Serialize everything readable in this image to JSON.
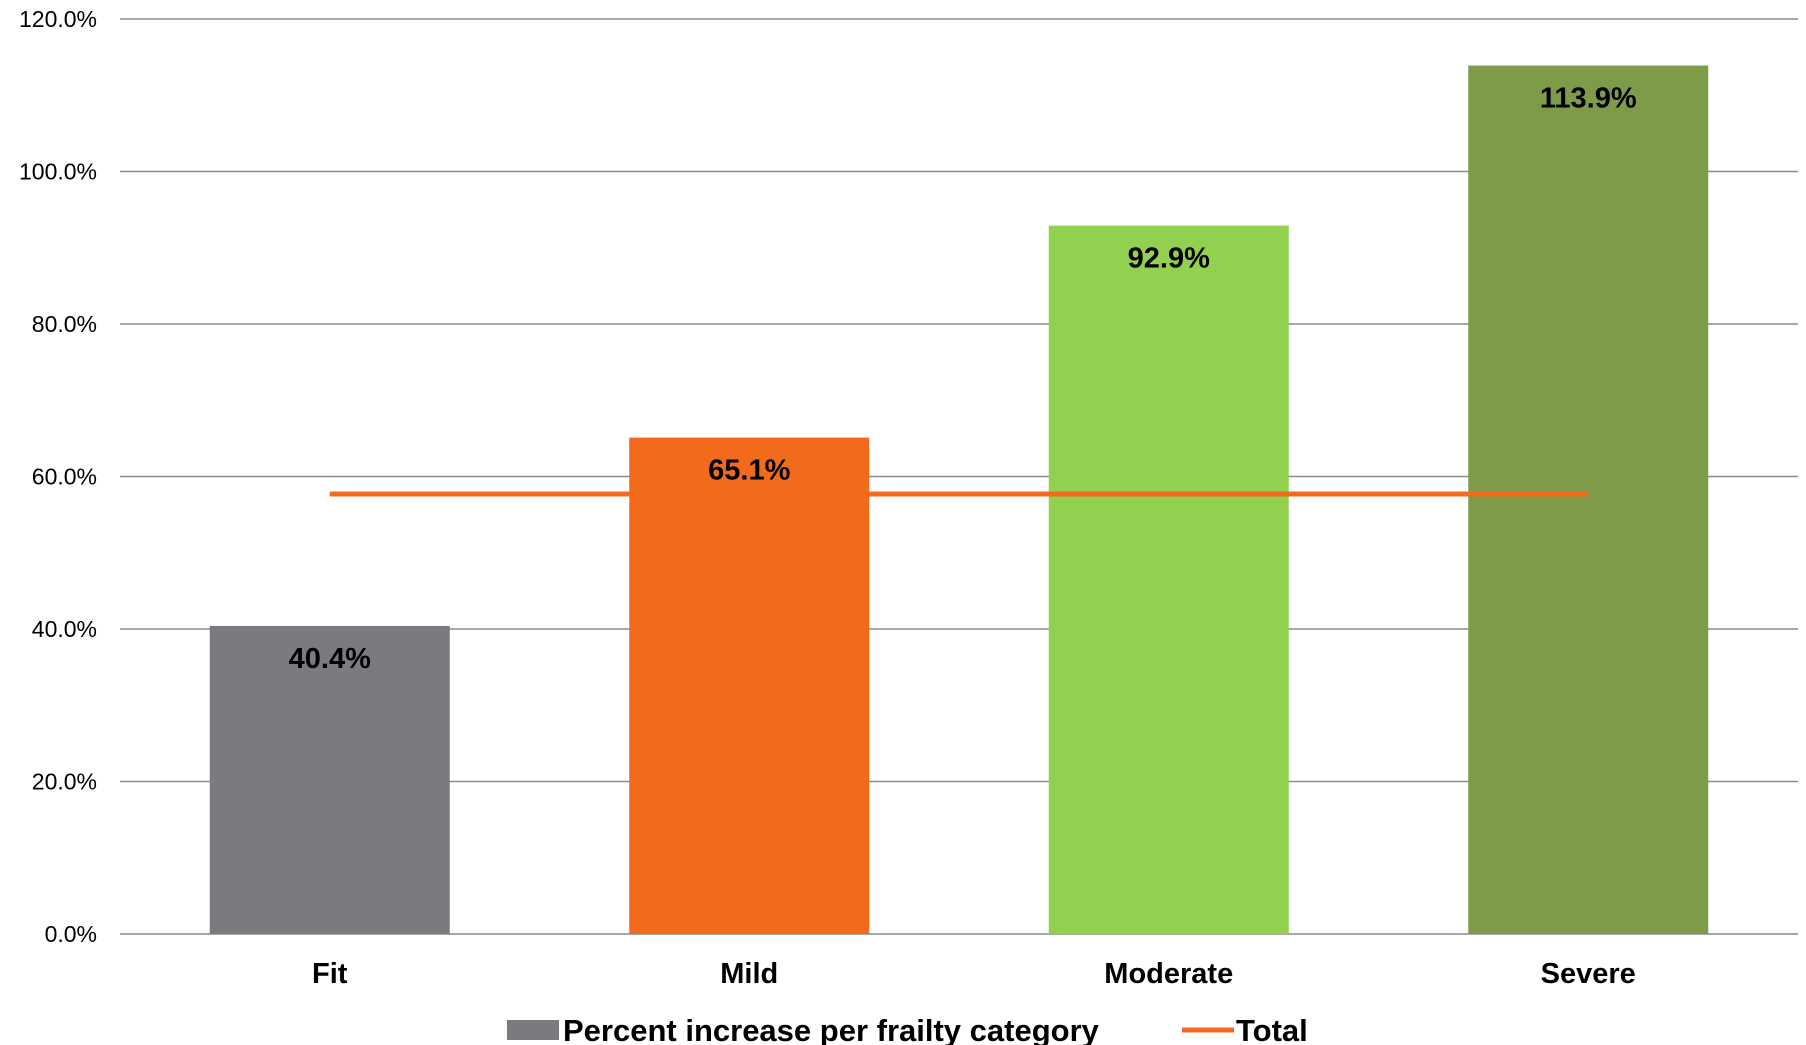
{
  "chart_data": {
    "type": "bar",
    "categories": [
      "Fit",
      "Mild",
      "Moderate",
      "Severe"
    ],
    "series": [
      {
        "name": "Percent increase per frailty category",
        "type": "bar",
        "values": [
          40.4,
          65.1,
          92.9,
          113.9
        ],
        "data_labels": [
          "40.4%",
          "65.1%",
          "92.9%",
          "113.9%"
        ],
        "colors": [
          "#7b7b7f",
          "#f26b1d",
          "#92d050",
          "#7e9b4a"
        ]
      },
      {
        "name": "Total",
        "type": "line",
        "values": [
          57.7,
          57.7,
          57.7,
          57.7
        ],
        "color": "#f26b1d"
      }
    ],
    "ylim": [
      0,
      120
    ],
    "yticks": [
      "0.0%",
      "20.0%",
      "40.0%",
      "60.0%",
      "80.0%",
      "100.0%",
      "120.0%"
    ],
    "title": "",
    "xlabel": "",
    "ylabel": "",
    "grid": true,
    "legend_position": "bottom"
  }
}
